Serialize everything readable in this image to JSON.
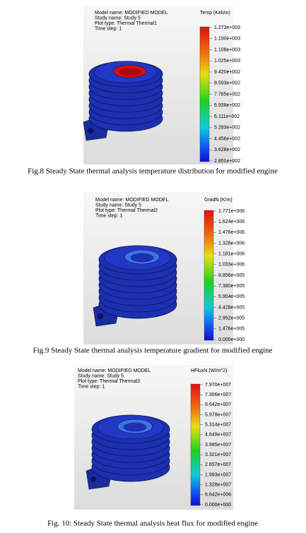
{
  "figures": [
    {
      "info": [
        "Model name: MODIFIED MODEL",
        "Study name: Study 5",
        "Plot type: Thermal Thermal1",
        "Time step: 1"
      ],
      "legend_title": "Temp (Kelvin)",
      "legend_labels": [
        "1.273e+003",
        "1.190e+003",
        "1.108e+003",
        "1.025e+003",
        "9.420e+002",
        "8.593e+002",
        "7.765e+002",
        "6.938e+002",
        "6.111e+002",
        "5.283e+002",
        "4.456e+002",
        "3.628e+002",
        "2.801e+002"
      ],
      "caption": "Fig.8 Steady State thermal analysis temperature distribution for modified engine"
    },
    {
      "info": [
        "Model name: MODIFIED MODEL",
        "Study name: Study 5",
        "Plot type: Thermal Thermal2",
        "Time step: 1"
      ],
      "legend_title": "GradN (K/m)",
      "legend_labels": [
        "1.771e+006",
        "1.624e+006",
        "1.476e+006",
        "1.328e+006",
        "1.181e+006",
        "1.033e+006",
        "8.856e+005",
        "7.380e+005",
        "5.904e+005",
        "4.428e+005",
        "2.952e+005",
        "1.476e+005",
        "0.000e+000"
      ],
      "caption": "Fig.9 Steady State thermal analysis temperature gradient for modified engine"
    },
    {
      "info": [
        "Model name: MODIFIED MODEL",
        "Study name: Study 5",
        "Plot type: Thermal Thermal3",
        "Time step: 1"
      ],
      "legend_title": "HFluxN (W/m^2)",
      "legend_labels": [
        "7.970e+007",
        "7.306e+007",
        "6.642e+007",
        "5.978e+007",
        "5.314e+007",
        "4.649e+007",
        "3.985e+007",
        "3.321e+007",
        "2.657e+007",
        "1.993e+007",
        "1.328e+007",
        "6.642e+006",
        "0.000e+000"
      ],
      "caption": "Fig. 10: Steady State thermal analysis heat flux for modified engine"
    }
  ]
}
